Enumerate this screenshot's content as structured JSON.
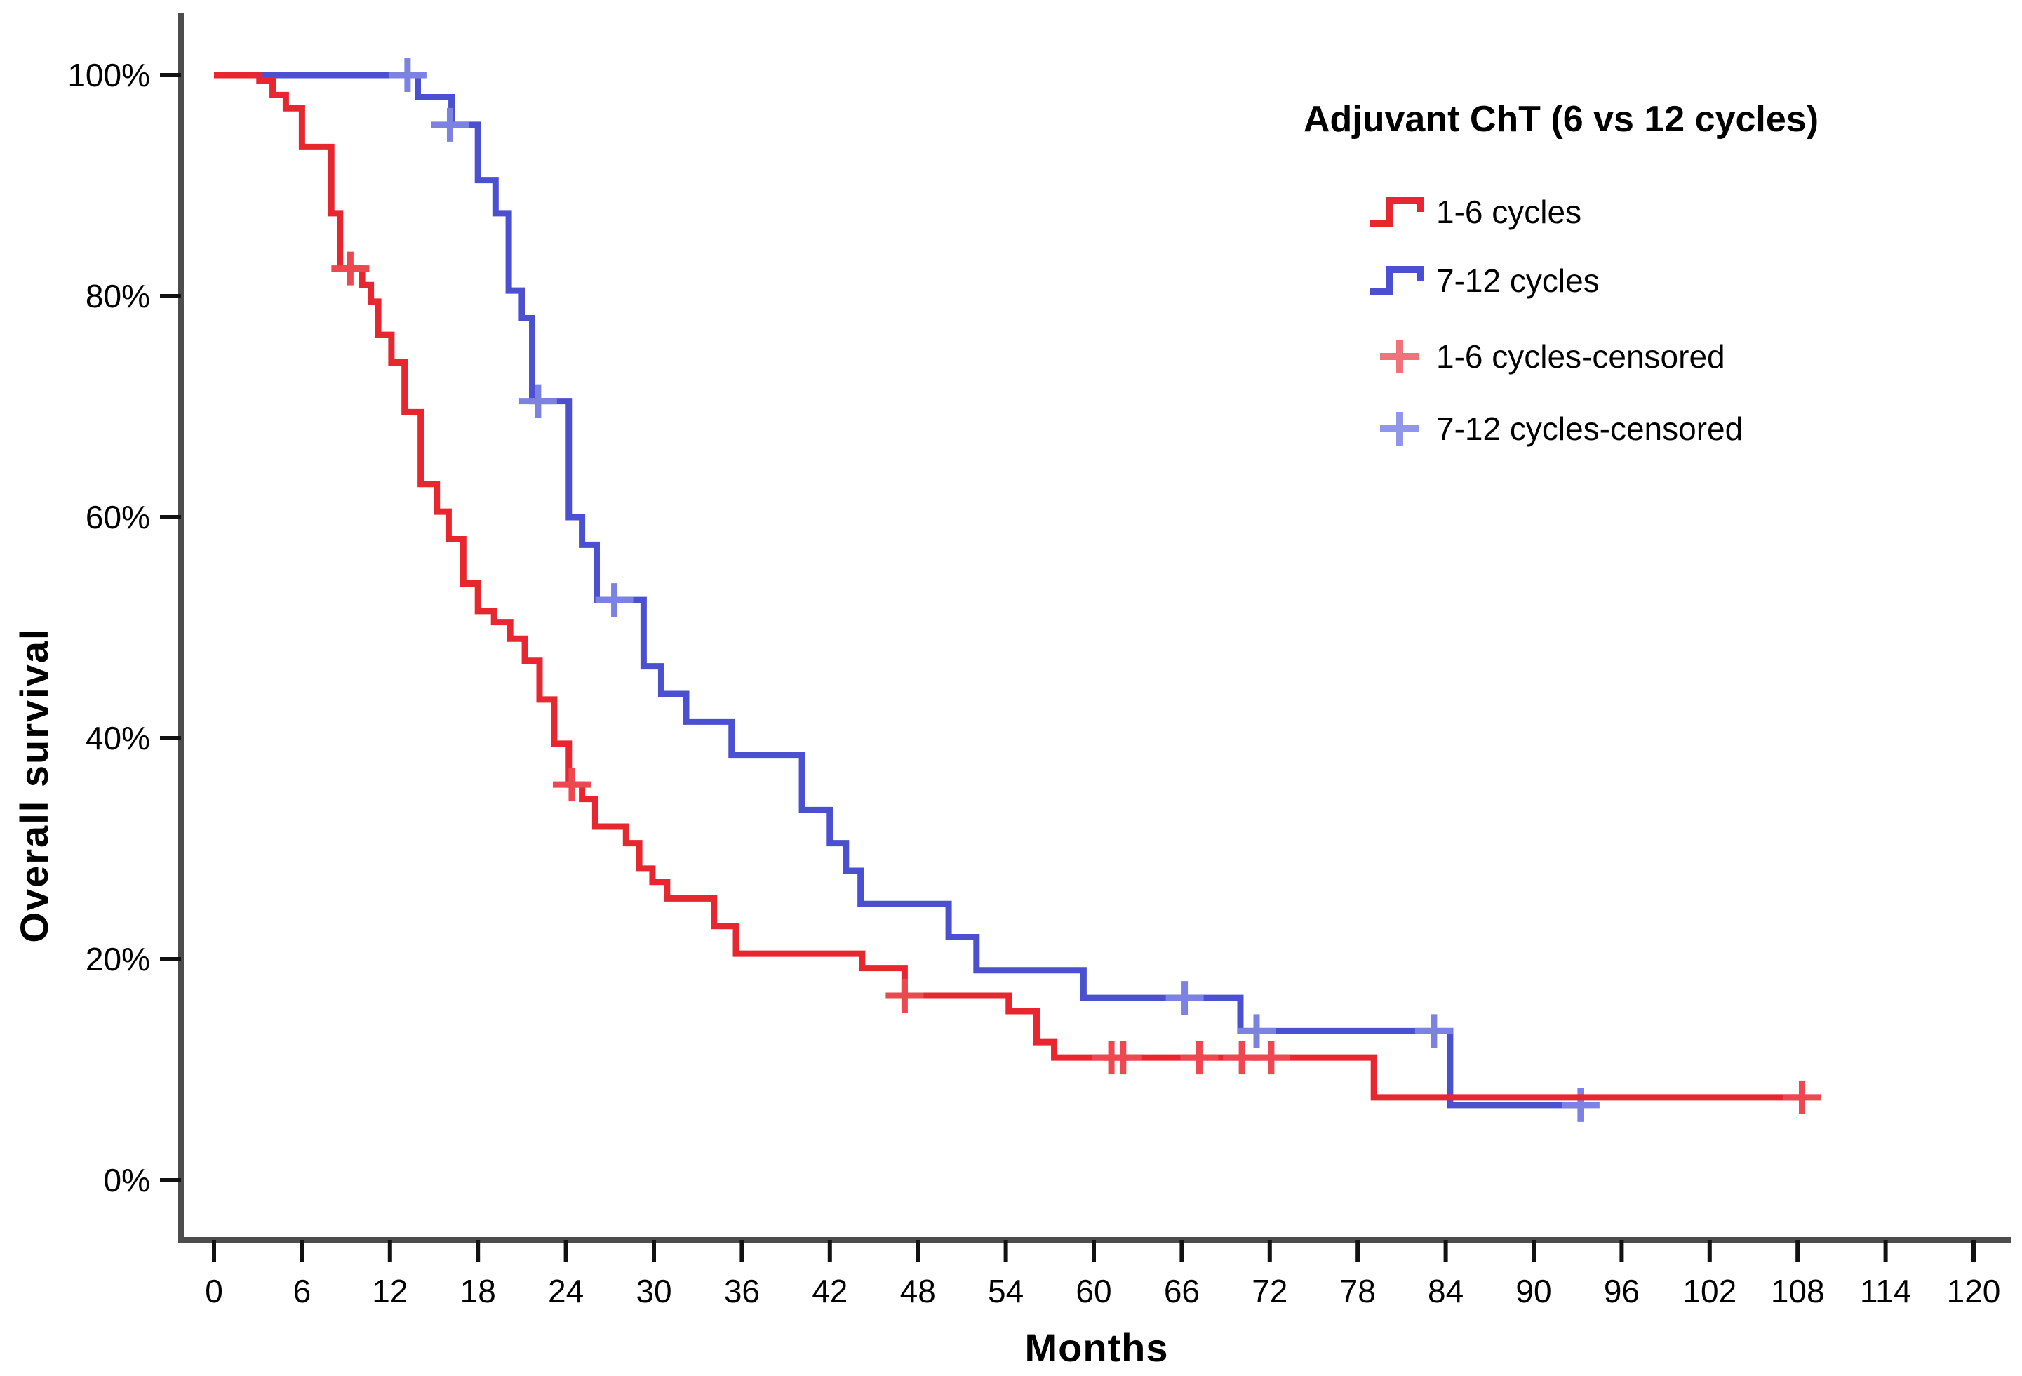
{
  "chart_data": {
    "type": "line",
    "subtype": "kaplan-meier-step",
    "title": "Adjuvant ChT (6 vs 12 cycles)",
    "xlabel": "Months",
    "ylabel": "Overall survival",
    "xlim": [
      0,
      120
    ],
    "ylim": [
      0,
      100
    ],
    "grid": false,
    "background": "#ffffff",
    "legend_position": "top-right",
    "xticks": [
      0,
      6,
      12,
      18,
      24,
      30,
      36,
      42,
      48,
      54,
      60,
      66,
      72,
      78,
      84,
      90,
      96,
      102,
      108,
      114,
      120
    ],
    "yticks": [
      {
        "value": 0,
        "label": "0%"
      },
      {
        "value": 20,
        "label": "20%"
      },
      {
        "value": 40,
        "label": "40%"
      },
      {
        "value": 60,
        "label": "60%"
      },
      {
        "value": 80,
        "label": "80%"
      },
      {
        "value": 100,
        "label": "100%"
      }
    ],
    "series": [
      {
        "name": "1-6 cycles",
        "color": "#e8262f",
        "censor_color": "#ed4750",
        "line_end": 108.3,
        "steps": [
          [
            0,
            100
          ],
          [
            3.1,
            99.5
          ],
          [
            4,
            98.2
          ],
          [
            4.9,
            97
          ],
          [
            6,
            93.5
          ],
          [
            8,
            87.5
          ],
          [
            8.6,
            82.5
          ],
          [
            10.1,
            81
          ],
          [
            10.7,
            79.5
          ],
          [
            11.2,
            76.5
          ],
          [
            12.1,
            74
          ],
          [
            13,
            69.5
          ],
          [
            14.1,
            63
          ],
          [
            15.2,
            60.5
          ],
          [
            16,
            58
          ],
          [
            17,
            54
          ],
          [
            18,
            51.5
          ],
          [
            19.1,
            50.5
          ],
          [
            20.2,
            49
          ],
          [
            21.2,
            47
          ],
          [
            22.2,
            43.5
          ],
          [
            23.2,
            39.5
          ],
          [
            24.2,
            35.8
          ],
          [
            25.1,
            34.5
          ],
          [
            26,
            32
          ],
          [
            28.1,
            30.5
          ],
          [
            29,
            28.2
          ],
          [
            29.9,
            27
          ],
          [
            30.9,
            25.5
          ],
          [
            34.1,
            23
          ],
          [
            35.6,
            20.5
          ],
          [
            44.2,
            19.2
          ],
          [
            47.1,
            16.7
          ],
          [
            54.2,
            15.3
          ],
          [
            56.1,
            12.5
          ],
          [
            57.3,
            11.1
          ],
          [
            79.1,
            7.5
          ]
        ],
        "censored": [
          [
            9.3,
            82.5
          ],
          [
            24.4,
            35.8
          ],
          [
            47.1,
            16.7
          ],
          [
            61.2,
            11.1
          ],
          [
            62,
            11.1
          ],
          [
            67.2,
            11.1
          ],
          [
            70.1,
            11.1
          ],
          [
            72.1,
            11.1
          ],
          [
            108.3,
            7.5
          ]
        ]
      },
      {
        "name": "7-12 cycles",
        "color": "#4a50cf",
        "censor_color": "#7b82e2",
        "line_end": 93.2,
        "steps": [
          [
            0,
            100
          ],
          [
            13.9,
            98
          ],
          [
            16.2,
            95.5
          ],
          [
            18,
            90.5
          ],
          [
            19.2,
            87.5
          ],
          [
            20.1,
            80.5
          ],
          [
            21,
            78
          ],
          [
            21.7,
            70.5
          ],
          [
            24.2,
            60
          ],
          [
            25.1,
            57.5
          ],
          [
            26.1,
            52.5
          ],
          [
            29.3,
            46.5
          ],
          [
            30.5,
            44
          ],
          [
            32.2,
            41.5
          ],
          [
            35.3,
            38.5
          ],
          [
            40.1,
            33.5
          ],
          [
            42,
            30.5
          ],
          [
            43.1,
            28
          ],
          [
            44.1,
            25
          ],
          [
            50.1,
            22
          ],
          [
            52,
            19
          ],
          [
            59.3,
            16.5
          ],
          [
            70,
            13.5
          ],
          [
            84.3,
            6.8
          ]
        ],
        "censored": [
          [
            13.2,
            100
          ],
          [
            16.1,
            95.5
          ],
          [
            22.1,
            70.5
          ],
          [
            27.3,
            52.5
          ],
          [
            66.2,
            16.5
          ],
          [
            71.1,
            13.5
          ],
          [
            83.2,
            13.5
          ],
          [
            93.2,
            6.8
          ]
        ]
      }
    ],
    "legend": {
      "title": "Adjuvant ChT (6 vs 12 cycles)",
      "entries": [
        {
          "label": "1-6 cycles",
          "symbol": "step-line",
          "color": "#e8262f"
        },
        {
          "label": "7-12 cycles",
          "symbol": "step-line",
          "color": "#4a50cf"
        },
        {
          "label": "1-6 cycles-censored",
          "symbol": "plus",
          "color": "#f0737b"
        },
        {
          "label": "7-12 cycles-censored",
          "symbol": "plus",
          "color": "#9096e8"
        }
      ]
    }
  }
}
